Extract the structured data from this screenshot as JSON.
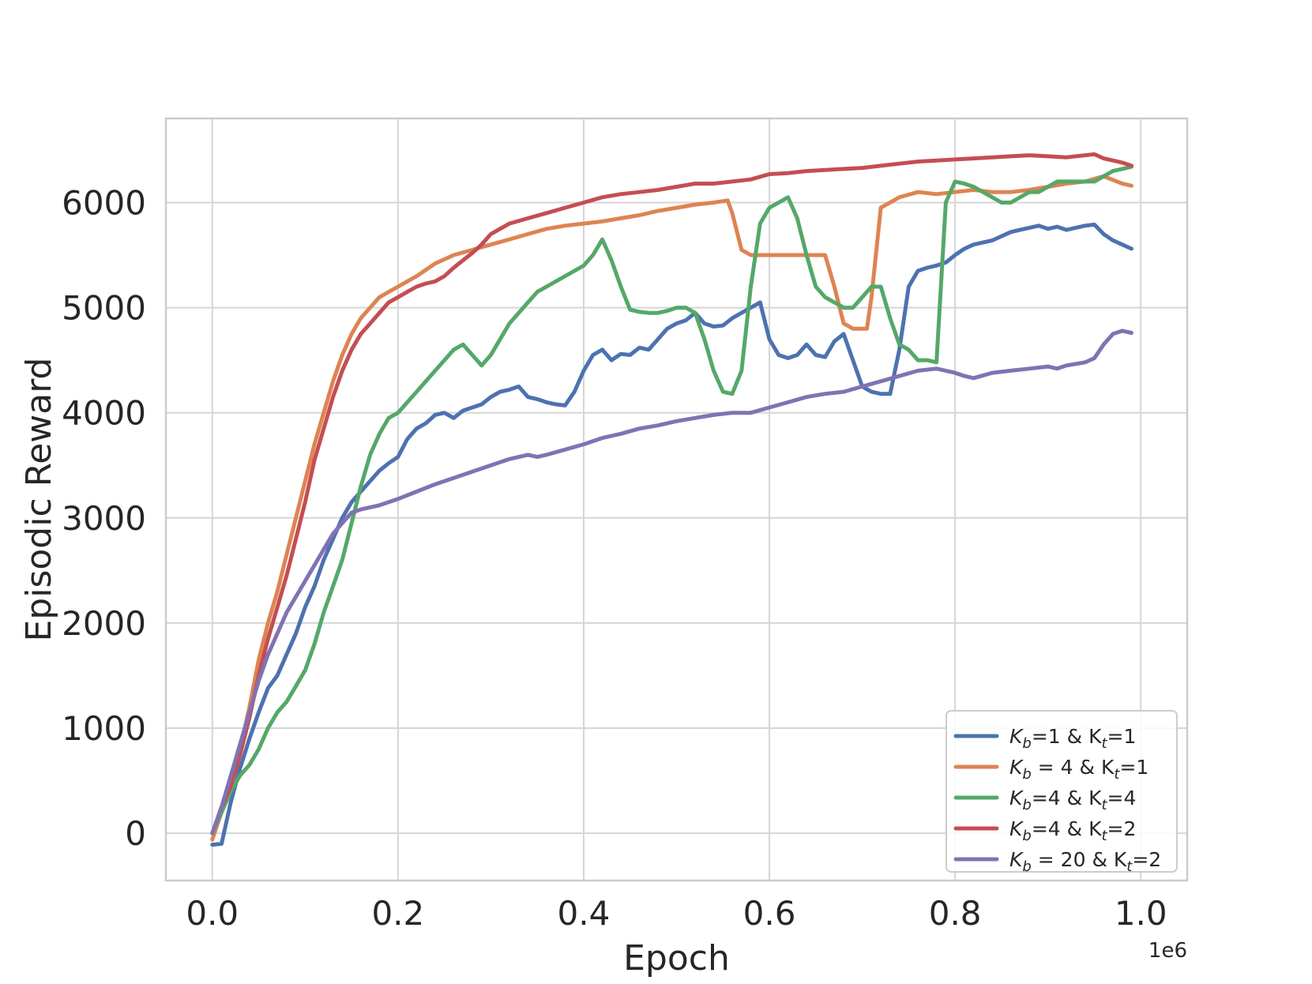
{
  "chart_data": {
    "type": "line",
    "xlabel": "Epoch",
    "ylabel": "Episodic Reward",
    "x_offset_label": "1e6",
    "xlim": [
      -0.05,
      1.05
    ],
    "ylim": [
      -450,
      6800
    ],
    "x_ticks": [
      0.0,
      0.2,
      0.4,
      0.6,
      0.8,
      1.0
    ],
    "x_tick_labels": [
      "0.0",
      "0.2",
      "0.4",
      "0.6",
      "0.8",
      "1.0"
    ],
    "y_ticks": [
      0,
      1000,
      2000,
      3000,
      4000,
      5000,
      6000
    ],
    "y_tick_labels": [
      "0",
      "1000",
      "2000",
      "3000",
      "4000",
      "5000",
      "6000"
    ],
    "grid": true,
    "legend_position": "lower-right",
    "series": [
      {
        "name_base": "K",
        "name_sub": "b",
        "name_mid": "=1  & K",
        "name_sub2": "t",
        "name_end": "=1",
        "color": "#4c72b0",
        "x": [
          0.0,
          0.01,
          0.02,
          0.03,
          0.04,
          0.05,
          0.06,
          0.07,
          0.08,
          0.09,
          0.1,
          0.11,
          0.12,
          0.13,
          0.14,
          0.15,
          0.16,
          0.17,
          0.18,
          0.19,
          0.2,
          0.21,
          0.22,
          0.23,
          0.24,
          0.25,
          0.26,
          0.27,
          0.28,
          0.29,
          0.3,
          0.31,
          0.32,
          0.33,
          0.34,
          0.35,
          0.36,
          0.37,
          0.38,
          0.39,
          0.4,
          0.41,
          0.42,
          0.43,
          0.44,
          0.45,
          0.46,
          0.47,
          0.48,
          0.49,
          0.5,
          0.51,
          0.52,
          0.53,
          0.54,
          0.55,
          0.56,
          0.57,
          0.58,
          0.59,
          0.6,
          0.61,
          0.62,
          0.63,
          0.64,
          0.65,
          0.66,
          0.67,
          0.68,
          0.69,
          0.7,
          0.71,
          0.72,
          0.73,
          0.74,
          0.75,
          0.76,
          0.77,
          0.78,
          0.79,
          0.8,
          0.81,
          0.82,
          0.83,
          0.84,
          0.85,
          0.86,
          0.87,
          0.88,
          0.89,
          0.9,
          0.91,
          0.92,
          0.93,
          0.94,
          0.95,
          0.96,
          0.97,
          0.98,
          0.99
        ],
        "y": [
          -110,
          -100,
          300,
          620,
          900,
          1150,
          1380,
          1500,
          1700,
          1900,
          2150,
          2350,
          2600,
          2800,
          3000,
          3150,
          3250,
          3350,
          3450,
          3520,
          3580,
          3750,
          3850,
          3900,
          3980,
          4000,
          3950,
          4020,
          4050,
          4080,
          4150,
          4200,
          4220,
          4250,
          4150,
          4130,
          4100,
          4080,
          4070,
          4200,
          4400,
          4550,
          4600,
          4500,
          4560,
          4550,
          4620,
          4600,
          4700,
          4800,
          4850,
          4880,
          4950,
          4850,
          4820,
          4830,
          4900,
          4950,
          5000,
          5050,
          4700,
          4550,
          4520,
          4550,
          4650,
          4550,
          4530,
          4680,
          4750,
          4500,
          4250,
          4200,
          4180,
          4180,
          4600,
          5200,
          5350,
          5380,
          5400,
          5430,
          5500,
          5560,
          5600,
          5620,
          5640,
          5680,
          5720,
          5740,
          5760,
          5780,
          5750,
          5770,
          5740,
          5760,
          5780,
          5790,
          5700,
          5640,
          5600,
          5560
        ]
      },
      {
        "name_base": "K",
        "name_sub": "b",
        "name_mid": " = 4  & K",
        "name_sub2": "t",
        "name_end": "=1",
        "color": "#dd8452",
        "x": [
          0.0,
          0.01,
          0.02,
          0.03,
          0.04,
          0.05,
          0.06,
          0.07,
          0.08,
          0.09,
          0.1,
          0.11,
          0.12,
          0.13,
          0.14,
          0.15,
          0.16,
          0.17,
          0.18,
          0.19,
          0.2,
          0.22,
          0.24,
          0.26,
          0.28,
          0.3,
          0.32,
          0.34,
          0.36,
          0.38,
          0.4,
          0.42,
          0.44,
          0.46,
          0.48,
          0.5,
          0.52,
          0.54,
          0.555,
          0.56,
          0.57,
          0.58,
          0.6,
          0.62,
          0.64,
          0.66,
          0.67,
          0.68,
          0.69,
          0.7,
          0.705,
          0.71,
          0.72,
          0.74,
          0.76,
          0.78,
          0.8,
          0.82,
          0.84,
          0.86,
          0.88,
          0.9,
          0.92,
          0.94,
          0.96,
          0.98,
          0.99
        ],
        "y": [
          -60,
          200,
          500,
          800,
          1200,
          1650,
          2000,
          2300,
          2650,
          3000,
          3350,
          3700,
          4000,
          4300,
          4550,
          4750,
          4900,
          5000,
          5100,
          5150,
          5200,
          5300,
          5420,
          5500,
          5550,
          5600,
          5650,
          5700,
          5750,
          5780,
          5800,
          5820,
          5850,
          5880,
          5920,
          5950,
          5980,
          6000,
          6020,
          5900,
          5550,
          5500,
          5500,
          5500,
          5500,
          5500,
          5200,
          4850,
          4800,
          4800,
          4800,
          5100,
          5950,
          6050,
          6100,
          6080,
          6100,
          6120,
          6100,
          6100,
          6120,
          6150,
          6180,
          6200,
          6250,
          6180,
          6160
        ]
      },
      {
        "name_base": "K",
        "name_sub": "b",
        "name_mid": "=4  & K",
        "name_sub2": "t",
        "name_end": "=4",
        "color": "#55a868",
        "x": [
          0.0,
          0.01,
          0.02,
          0.03,
          0.04,
          0.05,
          0.06,
          0.07,
          0.08,
          0.09,
          0.1,
          0.11,
          0.12,
          0.13,
          0.14,
          0.15,
          0.16,
          0.17,
          0.18,
          0.19,
          0.2,
          0.21,
          0.22,
          0.23,
          0.24,
          0.25,
          0.26,
          0.27,
          0.28,
          0.29,
          0.3,
          0.31,
          0.32,
          0.33,
          0.34,
          0.35,
          0.36,
          0.37,
          0.38,
          0.39,
          0.4,
          0.41,
          0.42,
          0.43,
          0.44,
          0.45,
          0.46,
          0.47,
          0.48,
          0.49,
          0.5,
          0.51,
          0.52,
          0.53,
          0.54,
          0.55,
          0.56,
          0.57,
          0.58,
          0.59,
          0.6,
          0.61,
          0.62,
          0.63,
          0.64,
          0.65,
          0.66,
          0.67,
          0.68,
          0.69,
          0.7,
          0.71,
          0.72,
          0.73,
          0.74,
          0.75,
          0.76,
          0.77,
          0.78,
          0.79,
          0.8,
          0.81,
          0.82,
          0.83,
          0.84,
          0.85,
          0.86,
          0.87,
          0.88,
          0.89,
          0.9,
          0.91,
          0.92,
          0.93,
          0.94,
          0.95,
          0.96,
          0.97,
          0.98,
          0.99
        ],
        "y": [
          0,
          200,
          400,
          550,
          650,
          800,
          1000,
          1150,
          1250,
          1400,
          1550,
          1800,
          2100,
          2350,
          2600,
          2950,
          3300,
          3600,
          3800,
          3950,
          4000,
          4100,
          4200,
          4300,
          4400,
          4500,
          4600,
          4650,
          4550,
          4450,
          4550,
          4700,
          4850,
          4950,
          5050,
          5150,
          5200,
          5250,
          5300,
          5350,
          5400,
          5500,
          5650,
          5450,
          5200,
          4980,
          4960,
          4950,
          4950,
          4970,
          5000,
          5000,
          4950,
          4700,
          4400,
          4200,
          4180,
          4400,
          5200,
          5800,
          5950,
          6000,
          6050,
          5850,
          5500,
          5200,
          5100,
          5050,
          5000,
          5000,
          5100,
          5200,
          5200,
          4900,
          4650,
          4600,
          4500,
          4500,
          4480,
          6000,
          6200,
          6180,
          6150,
          6100,
          6050,
          6000,
          6000,
          6050,
          6100,
          6100,
          6150,
          6200,
          6200,
          6200,
          6200,
          6200,
          6250,
          6300,
          6320,
          6340
        ]
      },
      {
        "name_base": "K",
        "name_sub": "b",
        "name_mid": "=4  & K",
        "name_sub2": "t",
        "name_end": "=2",
        "color": "#c44e52",
        "x": [
          0.0,
          0.01,
          0.02,
          0.03,
          0.04,
          0.05,
          0.06,
          0.07,
          0.08,
          0.09,
          0.1,
          0.11,
          0.12,
          0.13,
          0.14,
          0.15,
          0.16,
          0.17,
          0.18,
          0.19,
          0.2,
          0.21,
          0.22,
          0.23,
          0.24,
          0.25,
          0.26,
          0.27,
          0.28,
          0.29,
          0.3,
          0.32,
          0.34,
          0.36,
          0.38,
          0.4,
          0.42,
          0.44,
          0.46,
          0.48,
          0.5,
          0.52,
          0.54,
          0.56,
          0.58,
          0.6,
          0.62,
          0.64,
          0.66,
          0.68,
          0.7,
          0.72,
          0.74,
          0.76,
          0.78,
          0.8,
          0.82,
          0.84,
          0.86,
          0.88,
          0.9,
          0.92,
          0.94,
          0.95,
          0.96,
          0.97,
          0.98,
          0.99
        ],
        "y": [
          0,
          250,
          450,
          750,
          1100,
          1500,
          1850,
          2150,
          2450,
          2800,
          3150,
          3550,
          3850,
          4150,
          4400,
          4600,
          4750,
          4850,
          4950,
          5050,
          5100,
          5150,
          5200,
          5230,
          5250,
          5300,
          5380,
          5450,
          5520,
          5600,
          5700,
          5800,
          5850,
          5900,
          5950,
          6000,
          6050,
          6080,
          6100,
          6120,
          6150,
          6180,
          6180,
          6200,
          6220,
          6270,
          6280,
          6300,
          6310,
          6320,
          6330,
          6350,
          6370,
          6390,
          6400,
          6410,
          6420,
          6430,
          6440,
          6450,
          6440,
          6430,
          6450,
          6460,
          6420,
          6400,
          6380,
          6350
        ]
      },
      {
        "name_base": "K",
        "name_sub": "b",
        "name_mid": " = 20 & K",
        "name_sub2": "t",
        "name_end": "=2",
        "color": "#8172b3",
        "x": [
          0.0,
          0.01,
          0.02,
          0.03,
          0.04,
          0.05,
          0.06,
          0.07,
          0.08,
          0.09,
          0.1,
          0.11,
          0.12,
          0.13,
          0.14,
          0.15,
          0.16,
          0.18,
          0.2,
          0.22,
          0.24,
          0.26,
          0.28,
          0.3,
          0.32,
          0.34,
          0.35,
          0.36,
          0.38,
          0.4,
          0.42,
          0.44,
          0.46,
          0.48,
          0.5,
          0.52,
          0.54,
          0.56,
          0.58,
          0.6,
          0.62,
          0.64,
          0.66,
          0.68,
          0.7,
          0.72,
          0.74,
          0.76,
          0.78,
          0.8,
          0.81,
          0.82,
          0.84,
          0.86,
          0.88,
          0.9,
          0.91,
          0.92,
          0.94,
          0.95,
          0.96,
          0.97,
          0.98,
          0.99
        ],
        "y": [
          0,
          250,
          550,
          850,
          1150,
          1450,
          1700,
          1900,
          2100,
          2250,
          2400,
          2550,
          2700,
          2850,
          2950,
          3050,
          3080,
          3120,
          3180,
          3250,
          3320,
          3380,
          3440,
          3500,
          3560,
          3600,
          3580,
          3600,
          3650,
          3700,
          3760,
          3800,
          3850,
          3880,
          3920,
          3950,
          3980,
          4000,
          4000,
          4050,
          4100,
          4150,
          4180,
          4200,
          4250,
          4300,
          4350,
          4400,
          4420,
          4380,
          4350,
          4330,
          4380,
          4400,
          4420,
          4440,
          4420,
          4450,
          4480,
          4520,
          4650,
          4750,
          4780,
          4760
        ]
      }
    ]
  }
}
